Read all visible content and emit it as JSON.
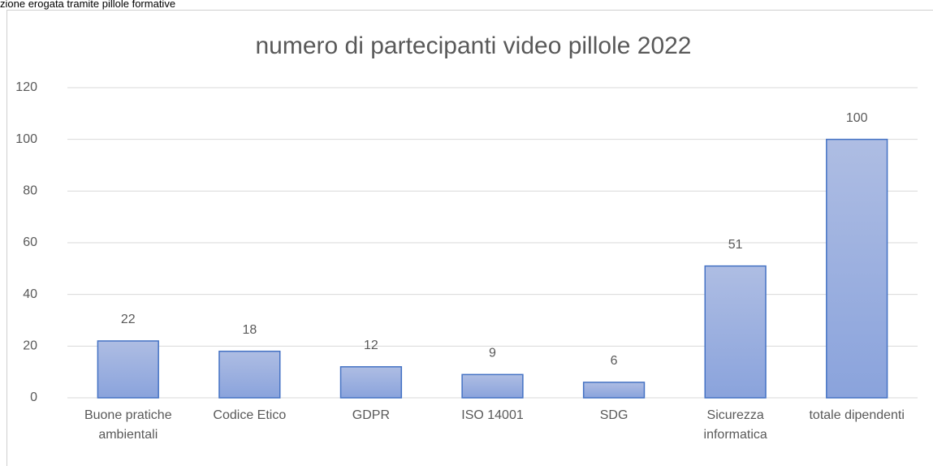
{
  "caption": "zione erogata tramite pillole formative",
  "chart_data": {
    "type": "bar",
    "title": "numero di partecipanti video pillole 2022",
    "categories": [
      "Buone pratiche ambientali",
      "Codice Etico",
      "GDPR",
      "ISO 14001",
      "SDG",
      "Sicurezza informatica",
      "totale dipendenti"
    ],
    "values": [
      22,
      18,
      12,
      9,
      6,
      51,
      100
    ],
    "color": "#4472c4",
    "ylim": [
      0,
      120
    ],
    "yticks": [
      0,
      20,
      40,
      60,
      80,
      100,
      120
    ],
    "grid": true
  }
}
